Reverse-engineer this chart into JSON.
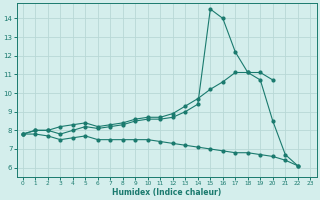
{
  "xlabel": "Humidex (Indice chaleur)",
  "bg_color": "#d4eeec",
  "grid_color": "#b8d8d6",
  "line_color": "#1a7a6e",
  "xlim": [
    -0.5,
    23.5
  ],
  "ylim": [
    5.5,
    14.8
  ],
  "xticks": [
    0,
    1,
    2,
    3,
    4,
    5,
    6,
    7,
    8,
    9,
    10,
    11,
    12,
    13,
    14,
    15,
    16,
    17,
    18,
    19,
    20,
    21,
    22,
    23
  ],
  "yticks": [
    6,
    7,
    8,
    9,
    10,
    11,
    12,
    13,
    14
  ],
  "line1_x": [
    0,
    1,
    2,
    3,
    4,
    5,
    6,
    7,
    8,
    9,
    10,
    11,
    12,
    13,
    14,
    15,
    16,
    17,
    18,
    19,
    20,
    21,
    22
  ],
  "line1_y": [
    7.8,
    8.0,
    8.0,
    7.8,
    8.0,
    8.2,
    8.1,
    8.2,
    8.3,
    8.5,
    8.6,
    8.6,
    8.7,
    9.0,
    9.4,
    14.5,
    14.0,
    12.2,
    11.1,
    10.7,
    8.5,
    6.7,
    6.1
  ],
  "line2_x": [
    0,
    1,
    2,
    3,
    4,
    5,
    6,
    7,
    8,
    9,
    10,
    11,
    12,
    13,
    14,
    15,
    16,
    17,
    18,
    19,
    20
  ],
  "line2_y": [
    7.8,
    8.0,
    8.0,
    8.2,
    8.3,
    8.4,
    8.2,
    8.3,
    8.4,
    8.6,
    8.7,
    8.7,
    8.9,
    9.3,
    9.7,
    10.2,
    10.6,
    11.1,
    11.1,
    11.1,
    10.7
  ],
  "line3_x": [
    0,
    1,
    2,
    3,
    4,
    5,
    6,
    7,
    8,
    9,
    10,
    11,
    12,
    13,
    14,
    15,
    16,
    17,
    18,
    19,
    20,
    21,
    22
  ],
  "line3_y": [
    7.8,
    7.8,
    7.7,
    7.5,
    7.6,
    7.7,
    7.5,
    7.5,
    7.5,
    7.5,
    7.5,
    7.4,
    7.3,
    7.2,
    7.1,
    7.0,
    6.9,
    6.8,
    6.8,
    6.7,
    6.6,
    6.4,
    6.1
  ]
}
